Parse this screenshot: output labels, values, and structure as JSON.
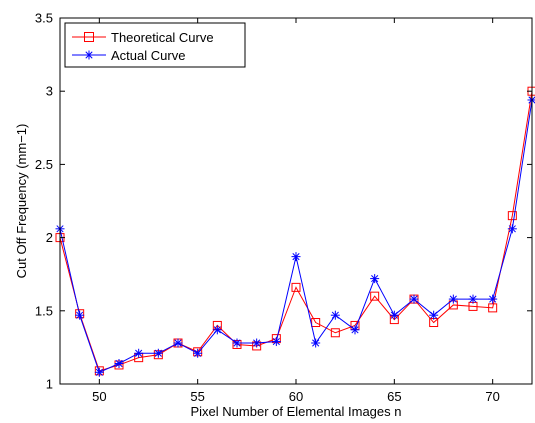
{
  "chart_data": {
    "type": "line",
    "xlabel": "Pixel Number of Elemental Images n",
    "ylabel": "Cut Off Frequency (mm−1)",
    "xlim": [
      48,
      72
    ],
    "ylim": [
      1,
      3.5
    ],
    "xticks": [
      50,
      55,
      60,
      65,
      70
    ],
    "yticks": [
      1,
      1.5,
      2,
      2.5,
      3,
      3.5
    ],
    "xtick_labels": [
      "50",
      "55",
      "60",
      "65",
      "70"
    ],
    "ytick_labels": [
      "1",
      "1.5",
      "2",
      "2.5",
      "3",
      "3.5"
    ],
    "grid": false,
    "legend_position": "top-left",
    "x": [
      48,
      49,
      50,
      51,
      52,
      53,
      54,
      55,
      56,
      57,
      58,
      59,
      60,
      61,
      62,
      63,
      64,
      65,
      66,
      67,
      68,
      69,
      70,
      71,
      72
    ],
    "series": [
      {
        "name": "Theoretical Curve",
        "color": "#ff0000",
        "marker": "square",
        "values": [
          2.0,
          1.48,
          1.09,
          1.13,
          1.18,
          1.2,
          1.28,
          1.22,
          1.4,
          1.27,
          1.26,
          1.31,
          1.66,
          1.42,
          1.35,
          1.4,
          1.6,
          1.44,
          1.58,
          1.42,
          1.54,
          1.53,
          1.52,
          2.15,
          3.0
        ]
      },
      {
        "name": "Actual Curve",
        "color": "#0000ff",
        "marker": "asterisk",
        "values": [
          2.06,
          1.47,
          1.08,
          1.14,
          1.21,
          1.21,
          1.28,
          1.21,
          1.37,
          1.28,
          1.28,
          1.29,
          1.87,
          1.28,
          1.47,
          1.37,
          1.72,
          1.47,
          1.58,
          1.47,
          1.58,
          1.58,
          1.58,
          2.06,
          2.94
        ]
      }
    ]
  }
}
